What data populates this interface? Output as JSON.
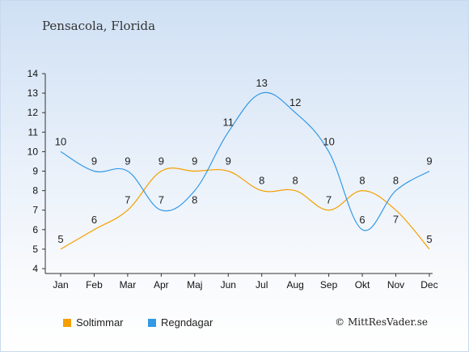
{
  "chart_data": {
    "type": "line",
    "title": "Pensacola, Florida",
    "categories": [
      "Jan",
      "Feb",
      "Mar",
      "Apr",
      "Maj",
      "Jun",
      "Jul",
      "Aug",
      "Sep",
      "Okt",
      "Nov",
      "Dec"
    ],
    "series": [
      {
        "name": "Soltimmar",
        "color": "#f5a000",
        "values": [
          5,
          6,
          7,
          9,
          9,
          9,
          8,
          8,
          7,
          8,
          7,
          5
        ]
      },
      {
        "name": "Regndagar",
        "color": "#3399e6",
        "values": [
          10,
          9,
          9,
          7,
          8,
          11,
          13,
          12,
          10,
          6,
          8,
          9
        ]
      }
    ],
    "ylim": [
      4,
      14
    ],
    "yticks": [
      4,
      5,
      6,
      7,
      8,
      9,
      10,
      11,
      12,
      13,
      14
    ],
    "xlabel": "",
    "ylabel": "",
    "legend_position": "bottom-left",
    "grid": false
  },
  "legend": [
    {
      "label": "Soltimmar",
      "color": "#f5a000"
    },
    {
      "label": "Regndagar",
      "color": "#3399e6"
    }
  ],
  "copyright": "© MittResVader.se"
}
